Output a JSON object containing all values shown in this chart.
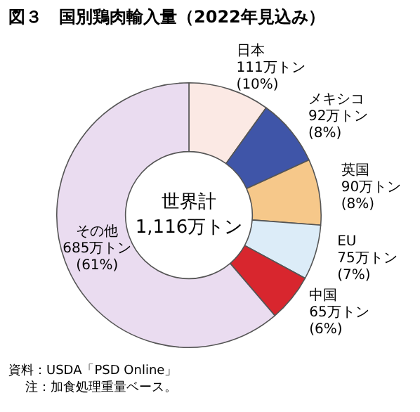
{
  "chart_data": {
    "type": "donut",
    "title": "図３　国別鶏肉輸入量（2022年見込み）",
    "categories": [
      "日本",
      "メキシコ",
      "英国",
      "EU",
      "中国",
      "その他"
    ],
    "values": [
      111,
      92,
      90,
      75,
      65,
      685
    ],
    "colors": [
      "#fbe9e4",
      "#3f55a8",
      "#f6c88a",
      "#dcecf8",
      "#d8262e",
      "#eadcf0"
    ],
    "value_labels": [
      "111万トン (10%)",
      "92万トン (8%)",
      "90万トン (8%)",
      "75万トン (7%)",
      "65万トン (6%)",
      "685万トン (61%)"
    ],
    "annotations": [
      "世界計 1,116万トン",
      "資料：USDA「PSD Online」",
      "注：加食処理重量ベース。"
    ],
    "legend": false
  }
}
